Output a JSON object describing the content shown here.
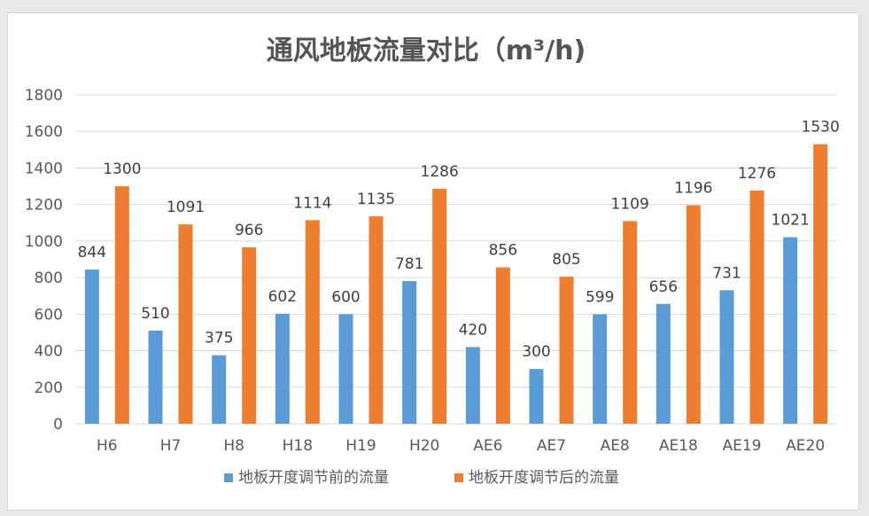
{
  "chart_data": {
    "type": "bar",
    "title": "通风地板流量对比（m³/h)",
    "xlabel": "",
    "ylabel": "",
    "ylim": [
      0,
      1800
    ],
    "yticks": [
      0,
      200,
      400,
      600,
      800,
      1000,
      1200,
      1400,
      1600,
      1800
    ],
    "grid": true,
    "legend_position": "bottom",
    "categories": [
      "H6",
      "H7",
      "H8",
      "H18",
      "H19",
      "H20",
      "AE6",
      "AE7",
      "AE8",
      "AE18",
      "AE19",
      "AE20"
    ],
    "series": [
      {
        "name": "地板开度调节前的流量",
        "color": "#5b9bd5",
        "values": [
          844,
          510,
          375,
          602,
          600,
          781,
          420,
          300,
          599,
          656,
          731,
          1021
        ]
      },
      {
        "name": "地板开度调节后的流量",
        "color": "#ed7d31",
        "values": [
          1300,
          1091,
          966,
          1114,
          1135,
          1286,
          856,
          805,
          1109,
          1196,
          1276,
          1530
        ]
      }
    ]
  }
}
